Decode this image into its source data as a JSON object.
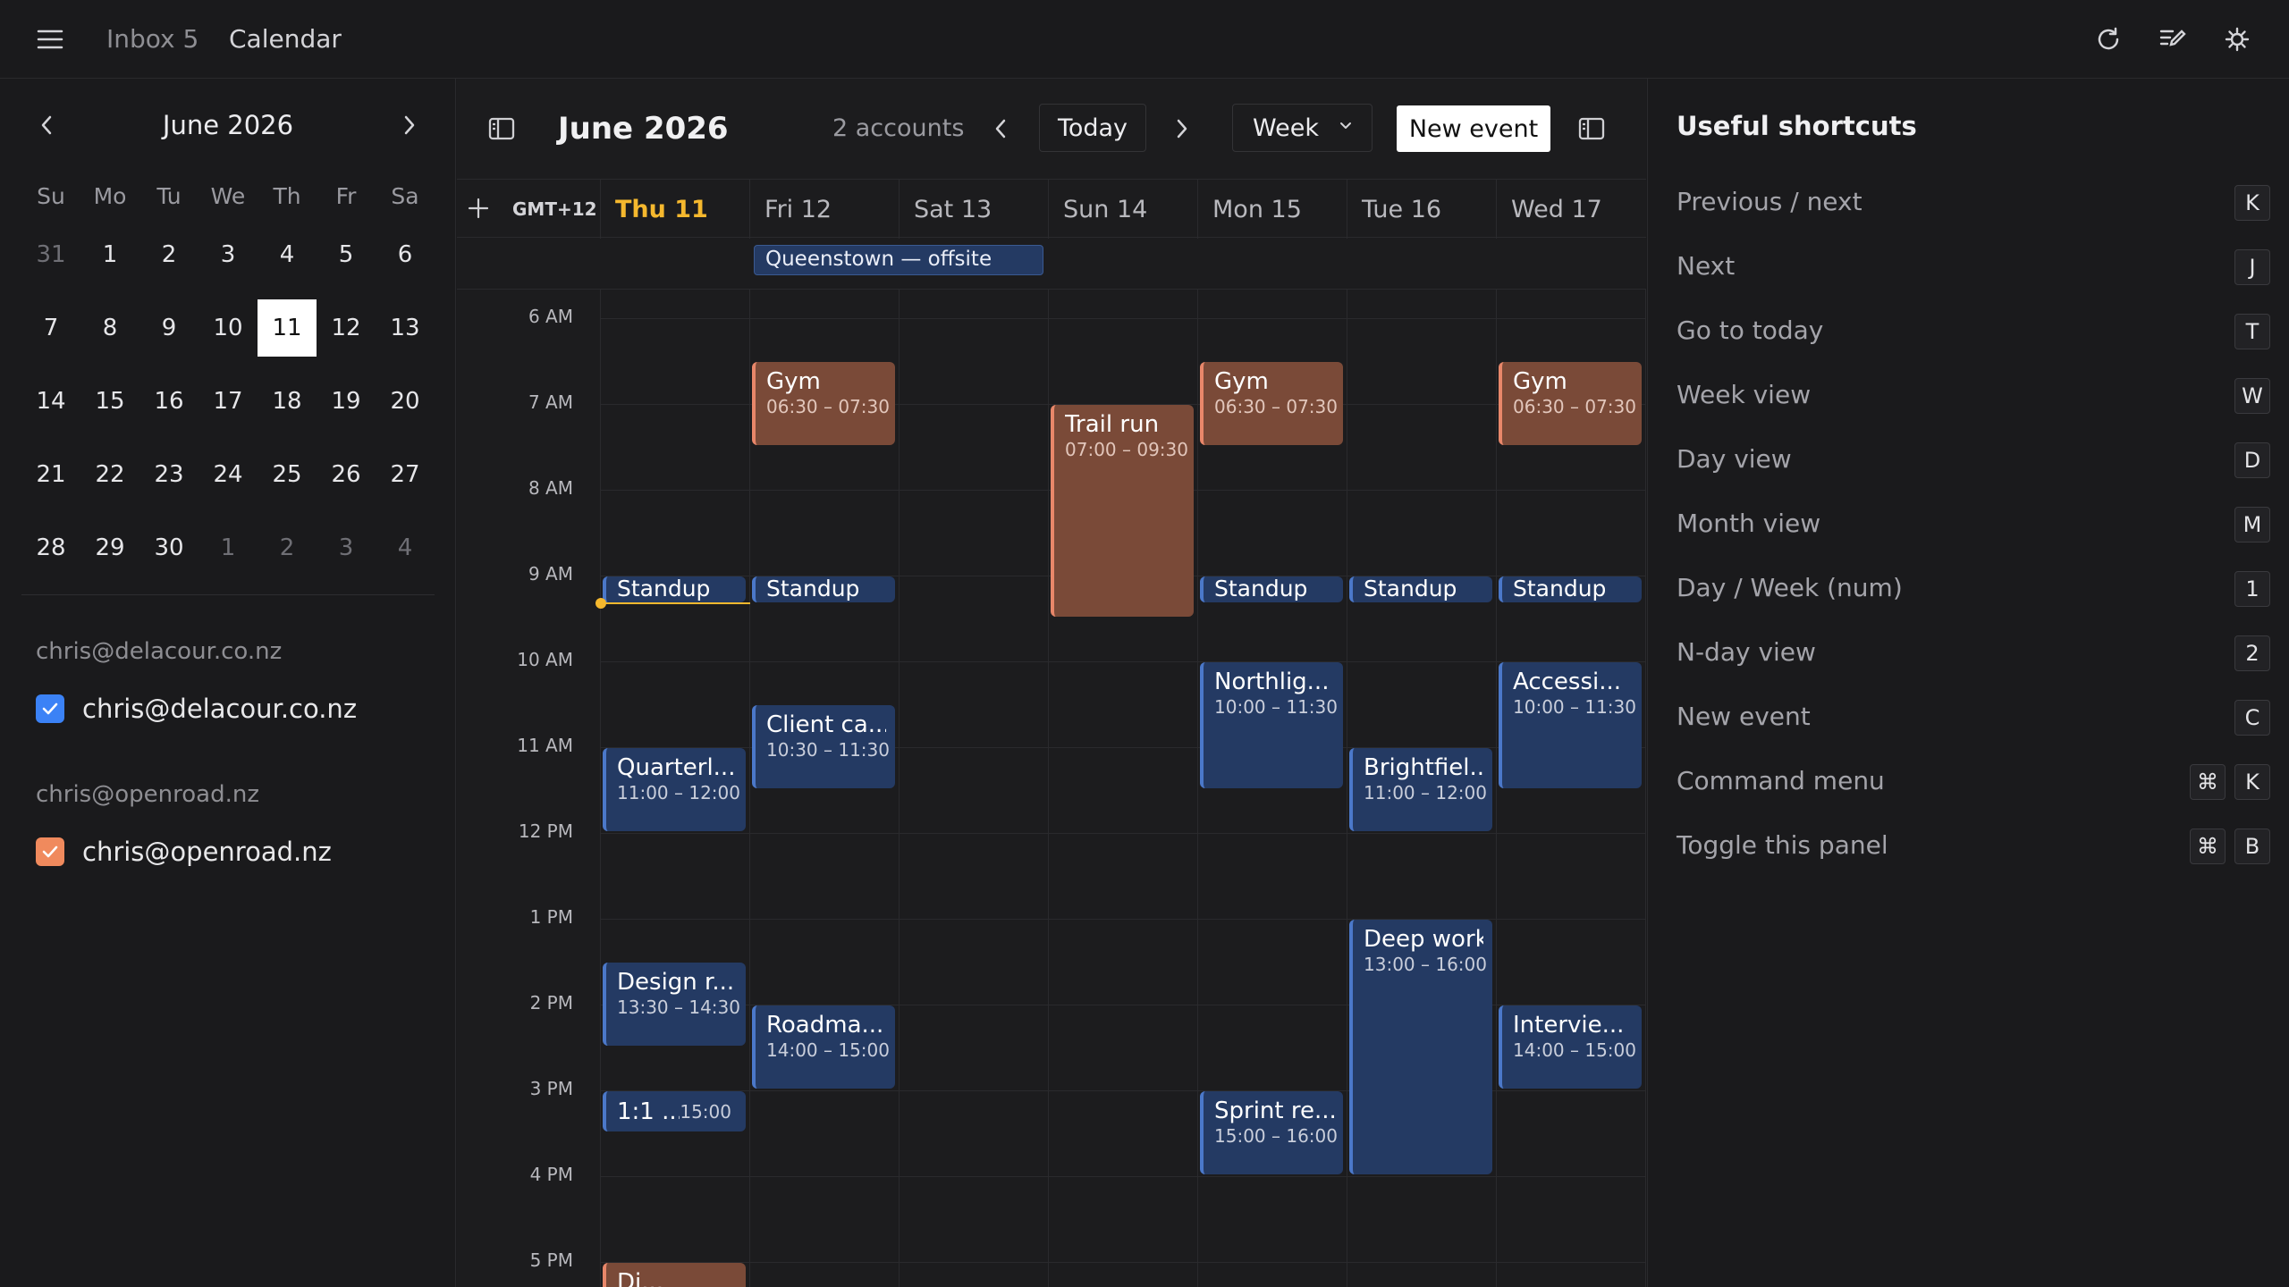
{
  "topbar": {
    "tabs": [
      {
        "label": "Inbox 5",
        "active": false
      },
      {
        "label": "Calendar",
        "active": true
      }
    ],
    "icons": [
      "menu-icon",
      "refresh-icon",
      "compose-icon",
      "search-settings-icon"
    ]
  },
  "mini_calendar": {
    "title": "June 2026",
    "weekdays": [
      "Su",
      "Mo",
      "Tu",
      "We",
      "Th",
      "Fr",
      "Sa"
    ],
    "weeks": [
      [
        "31",
        "1",
        "2",
        "3",
        "4",
        "5",
        "6"
      ],
      [
        "7",
        "8",
        "9",
        "10",
        "11",
        "12",
        "13"
      ],
      [
        "14",
        "15",
        "16",
        "17",
        "18",
        "19",
        "20"
      ],
      [
        "21",
        "22",
        "23",
        "24",
        "25",
        "26",
        "27"
      ],
      [
        "28",
        "29",
        "30",
        "1",
        "2",
        "3",
        "4"
      ]
    ],
    "selected": "11"
  },
  "accounts": [
    {
      "header": "chris@delacour.co.nz",
      "label": "chris@delacour.co.nz",
      "color": "#3b82f6"
    },
    {
      "header": "chris@openroad.nz",
      "label": "chris@openroad.nz",
      "color": "#f08a5d"
    }
  ],
  "toolbar": {
    "title": "June 2026",
    "accounts_count": "2 accounts",
    "today_label": "Today",
    "view_label": "Week",
    "new_event_label": "New event"
  },
  "week": {
    "timezone": "GMT+12",
    "days": [
      "Thu 11",
      "Fri 12",
      "Sat 13",
      "Sun 14",
      "Mon 15",
      "Tue 16",
      "Wed 17"
    ],
    "today_index": 0,
    "hours": [
      "6 AM",
      "7 AM",
      "8 AM",
      "9 AM",
      "10 AM",
      "11 AM",
      "12 PM",
      "1 PM",
      "2 PM",
      "3 PM",
      "4 PM",
      "5 PM"
    ],
    "all_day": {
      "title": "Queenstown — offsite"
    }
  },
  "events": [
    {
      "day": 1,
      "title": "Gym",
      "time": "06:30 – 07:30",
      "color": "orange"
    },
    {
      "day": 4,
      "title": "Gym",
      "time": "06:30 – 07:30",
      "color": "orange"
    },
    {
      "day": 6,
      "title": "Gym",
      "time": "06:30 – 07:30",
      "color": "orange"
    },
    {
      "day": 3,
      "title": "Trail run",
      "time": "07:00 – 09:30",
      "color": "orange"
    },
    {
      "day": 0,
      "title": "Standup",
      "time": "",
      "color": "blue"
    },
    {
      "day": 1,
      "title": "Standup",
      "time": "",
      "color": "blue"
    },
    {
      "day": 4,
      "title": "Standup",
      "time": "",
      "color": "blue"
    },
    {
      "day": 5,
      "title": "Standup",
      "time": "",
      "color": "blue"
    },
    {
      "day": 6,
      "title": "Standup",
      "time": "",
      "color": "blue"
    },
    {
      "day": 4,
      "title": "Northlig...",
      "time": "10:00 – 11:30",
      "color": "blue"
    },
    {
      "day": 6,
      "title": "Accessi...",
      "time": "10:00 – 11:30",
      "color": "blue"
    },
    {
      "day": 1,
      "title": "Client ca...",
      "time": "10:30 – 11:30",
      "color": "blue"
    },
    {
      "day": 0,
      "title": "Quarterl...",
      "time": "11:00 – 12:00",
      "color": "blue"
    },
    {
      "day": 5,
      "title": "Brightfiel...",
      "time": "11:00 – 12:00",
      "color": "blue"
    },
    {
      "day": 5,
      "title": "Deep work",
      "time": "13:00 – 16:00",
      "color": "blue"
    },
    {
      "day": 0,
      "title": "Design r...",
      "time": "13:30 – 14:30",
      "color": "blue"
    },
    {
      "day": 1,
      "title": "Roadma...",
      "time": "14:00 – 15:00",
      "color": "blue"
    },
    {
      "day": 6,
      "title": "Intervie...",
      "time": "14:00 – 15:00",
      "color": "blue"
    },
    {
      "day": 0,
      "title": "1:1 ...",
      "time": "15:00",
      "color": "blue"
    },
    {
      "day": 4,
      "title": "Sprint re...",
      "time": "15:00 – 16:00",
      "color": "blue"
    },
    {
      "day": 0,
      "title": "Di...",
      "time": "",
      "color": "orange"
    }
  ],
  "shortcuts": {
    "title": "Useful shortcuts",
    "items": [
      {
        "label": "Previous / next",
        "keys": [
          "K"
        ]
      },
      {
        "label": "Next",
        "keys": [
          "J"
        ]
      },
      {
        "label": "Go to today",
        "keys": [
          "T"
        ]
      },
      {
        "label": "Week view",
        "keys": [
          "W"
        ]
      },
      {
        "label": "Day view",
        "keys": [
          "D"
        ]
      },
      {
        "label": "Month view",
        "keys": [
          "M"
        ]
      },
      {
        "label": "Day / Week (num)",
        "keys": [
          "1"
        ]
      },
      {
        "label": "N-day view",
        "keys": [
          "2"
        ]
      },
      {
        "label": "New event",
        "keys": [
          "C"
        ]
      },
      {
        "label": "Command menu",
        "keys": [
          "⌘",
          "K"
        ]
      },
      {
        "label": "Toggle this panel",
        "keys": [
          "⌘",
          "B"
        ]
      }
    ]
  }
}
